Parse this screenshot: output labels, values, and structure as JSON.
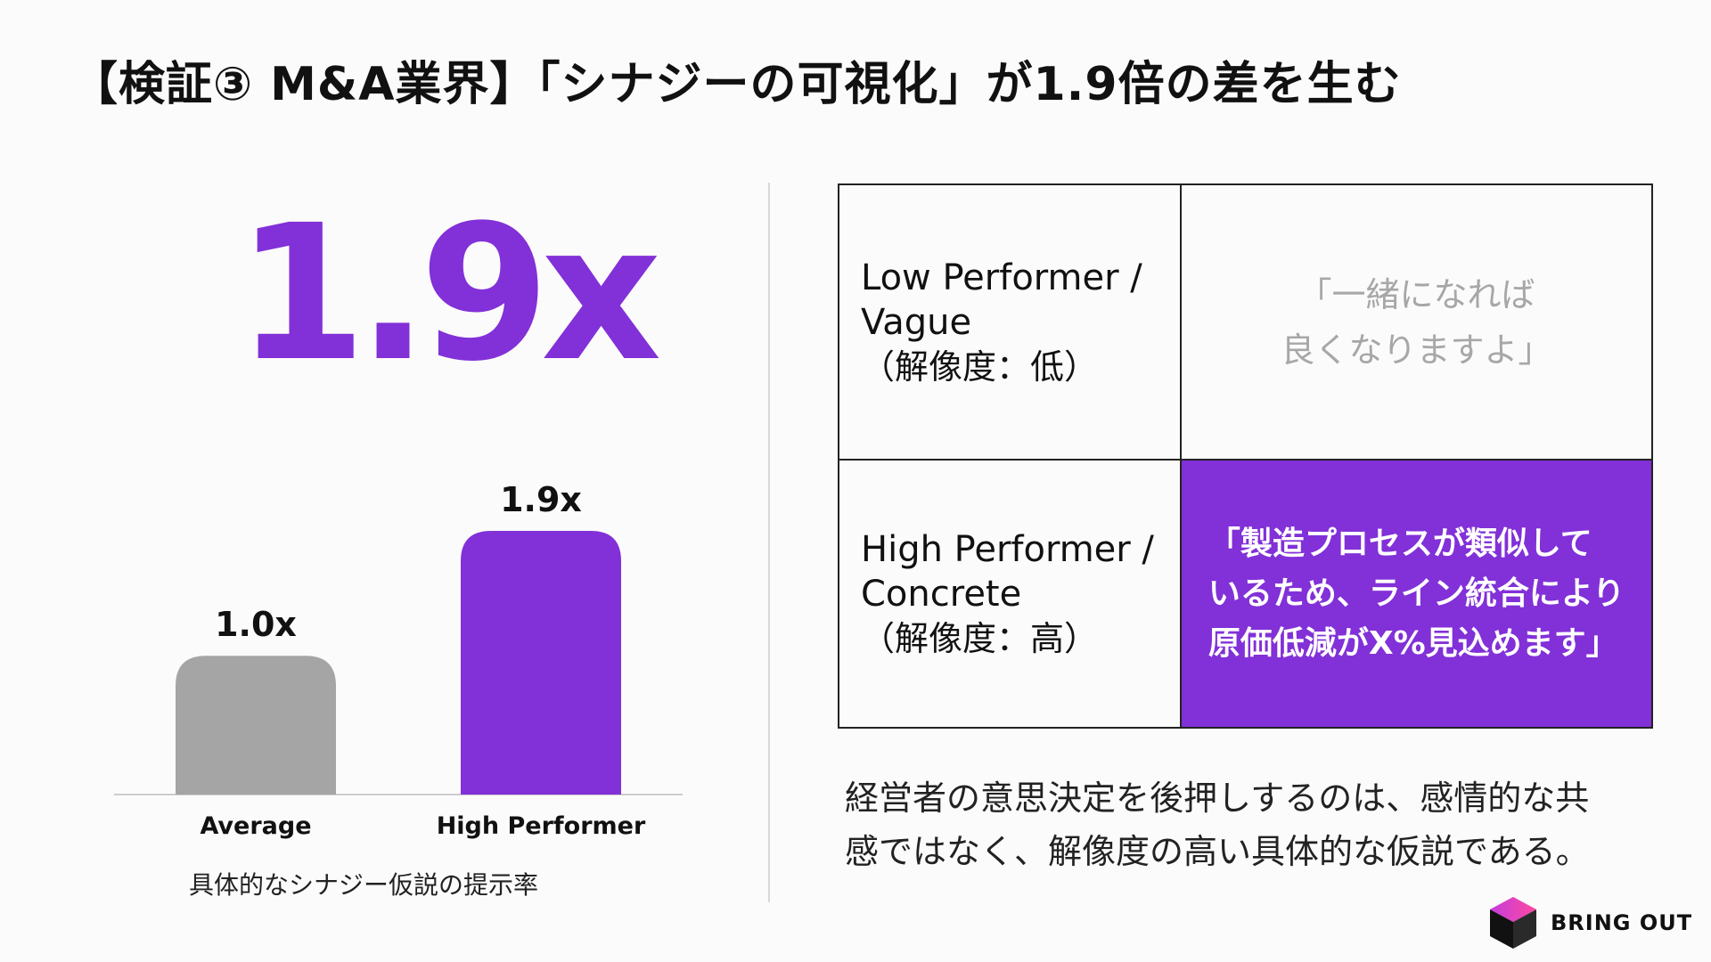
{
  "title": "【検証③ M&A業界】「シナジーの可視化」が1.9倍の差を生む",
  "big_number": "1.9x",
  "chart_caption": "具体的なシナジー仮説の提示率",
  "colors": {
    "accent": "#8230d8",
    "average_bar": "#a5a5a5",
    "baseline": "#cccccc"
  },
  "chart_data": {
    "type": "bar",
    "categories": [
      "Average",
      "High Performer"
    ],
    "values": [
      1.0,
      1.9
    ],
    "data_labels": [
      "1.0x",
      "1.9x"
    ],
    "title": "",
    "xlabel": "具体的なシナジー仮説の提示率",
    "ylabel": "",
    "ylim": [
      0,
      1.9
    ],
    "grid": false,
    "bar_colors": [
      "#a5a5a5",
      "#8230d8"
    ]
  },
  "matrix": {
    "rows": [
      {
        "label": "Low Performer /\nVague",
        "sublabel": "（解像度：低）",
        "quote": "「一緒になれば\n良くなりますよ」"
      },
      {
        "label": "High Performer /\nConcrete",
        "sublabel": "（解像度：高）",
        "quote": "「製造プロセスが類似して\nいるため、ライン統合により\n原価低減がX%見込めます」"
      }
    ]
  },
  "conclusion": "経営者の意思決定を後押しするのは、感情的な共\n感ではなく、解像度の高い具体的な仮説である。",
  "logo": {
    "text": "BRING OUT",
    "icon": "cube-icon"
  }
}
